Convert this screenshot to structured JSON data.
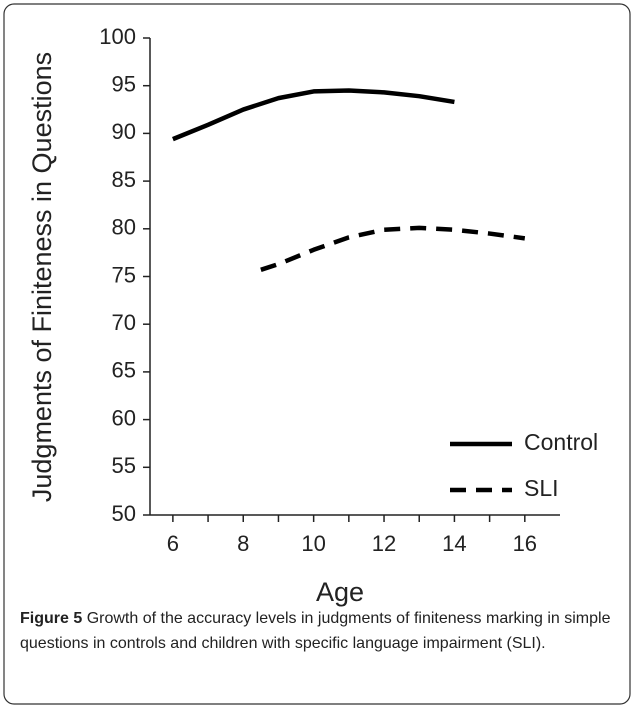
{
  "chart_data": {
    "type": "line",
    "ylabel": "Judgments of Finiteness in Questions",
    "xlabel": "Age",
    "caption_label": "Figure 5",
    "caption": "Growth of the accuracy levels in judgments of finiteness marking in simple questions in controls and children with specific language impairment (SLI).",
    "series": [
      {
        "name": "Control",
        "color": "#000000",
        "dash": "solid",
        "x": [
          6,
          7,
          8,
          9,
          10,
          11,
          12,
          13,
          14
        ],
        "values": [
          89.4,
          90.9,
          92.5,
          93.7,
          94.4,
          94.5,
          94.3,
          93.9,
          93.3
        ]
      },
      {
        "name": "SLI",
        "color": "#000000",
        "dash": "dashed",
        "x": [
          8.5,
          9,
          10,
          11,
          12,
          13,
          14,
          15,
          16
        ],
        "values": [
          75.7,
          76.3,
          77.8,
          79.1,
          79.9,
          80.1,
          79.9,
          79.5,
          79.0
        ]
      }
    ],
    "xlim": [
      5.35,
      17
    ],
    "xticks": [
      6,
      8,
      10,
      12,
      14,
      16
    ],
    "xminorticks": [
      7,
      9,
      11,
      13,
      15
    ],
    "ylim": [
      50,
      100
    ],
    "yticks": [
      50,
      55,
      60,
      65,
      70,
      75,
      80,
      85,
      90,
      95,
      100
    ],
    "grid": false,
    "legend": "lower right"
  }
}
